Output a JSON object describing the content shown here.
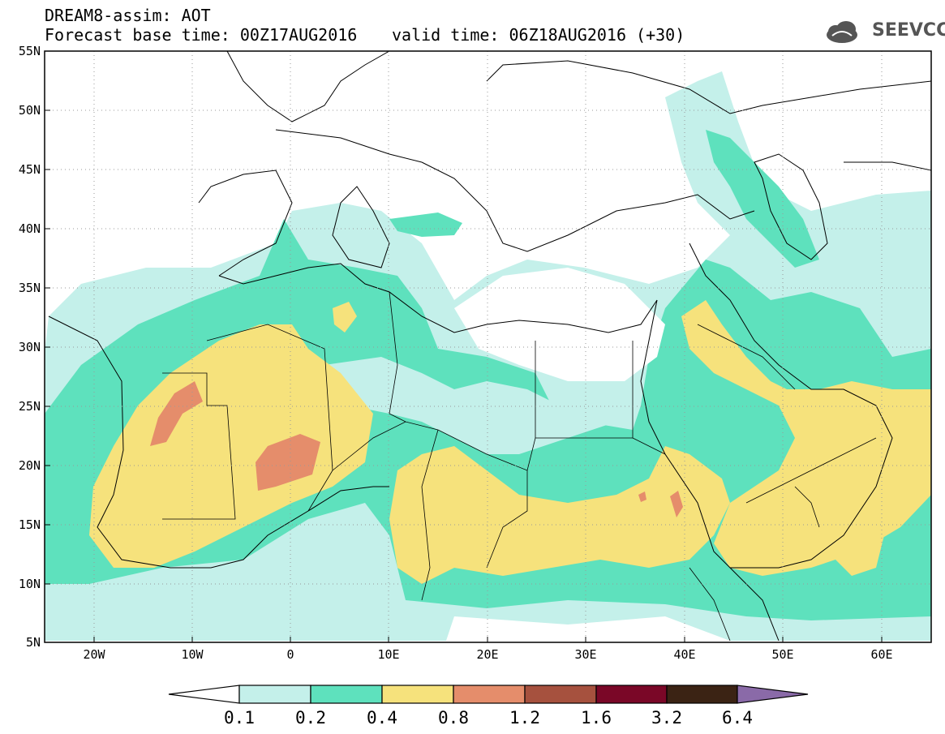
{
  "header": {
    "title": "DREAM8-assim: AOT",
    "base_time": "Forecast base time: 00Z17AUG2016",
    "valid_time": "valid time: 06Z18AUG2016 (+30)",
    "logo_text": "SEEVCCC"
  },
  "map": {
    "lat_labels": [
      "55N",
      "50N",
      "45N",
      "40N",
      "35N",
      "30N",
      "25N",
      "20N",
      "15N",
      "10N",
      "5N"
    ],
    "lon_labels": [
      "20W",
      "10W",
      "0",
      "10E",
      "20E",
      "30E",
      "40E",
      "50E",
      "60E"
    ]
  },
  "colorbar": {
    "labels": [
      "0.1",
      "0.2",
      "0.4",
      "0.8",
      "1.2",
      "1.6",
      "3.2",
      "6.4"
    ],
    "colors": [
      "#ffffff",
      "#c4f0ea",
      "#5ee1bd",
      "#f6e27c",
      "#e58d6b",
      "#a6513e",
      "#7a0727",
      "#3b2314",
      "#8a6aa8"
    ]
  }
}
